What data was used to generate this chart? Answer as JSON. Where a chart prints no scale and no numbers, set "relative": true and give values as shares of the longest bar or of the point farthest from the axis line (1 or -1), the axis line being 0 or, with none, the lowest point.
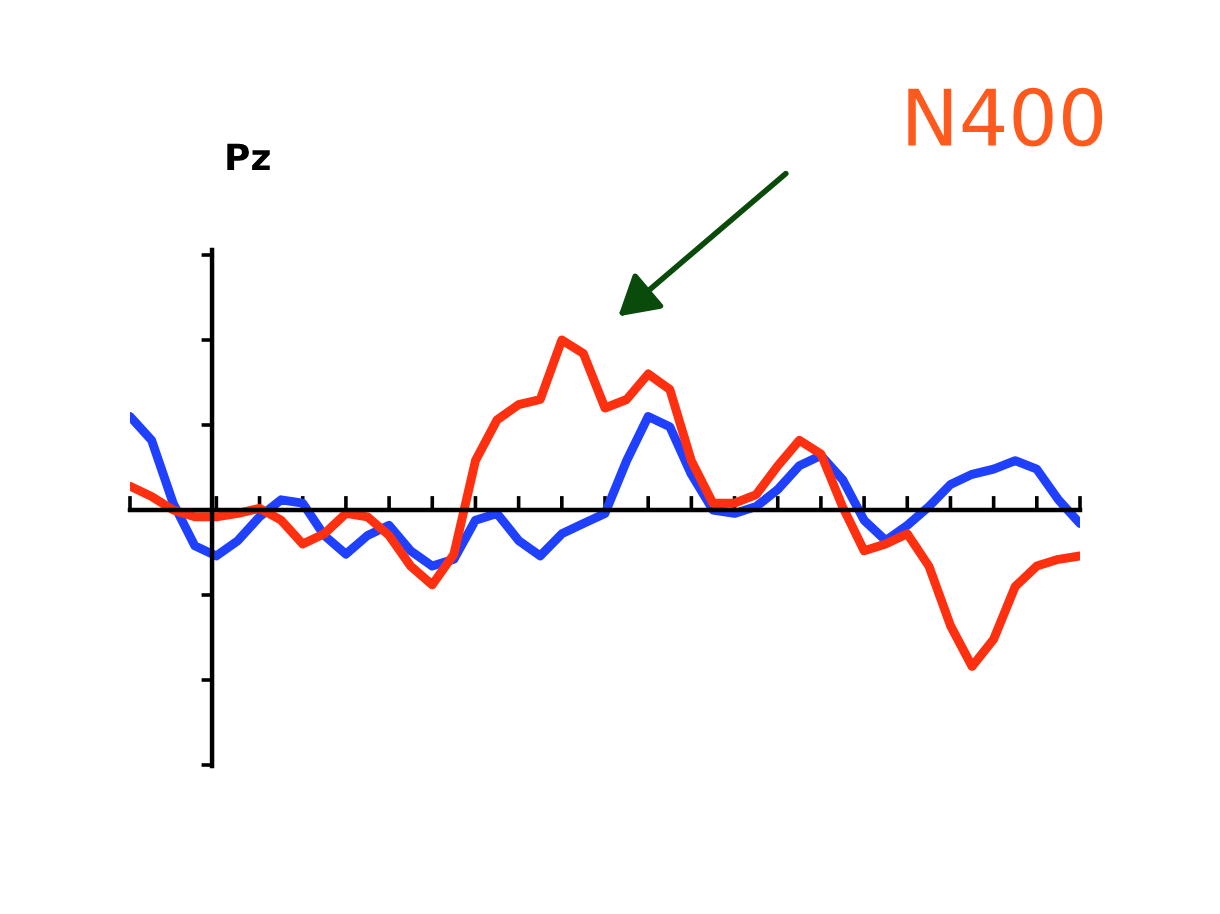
{
  "chart_data": {
    "type": "line",
    "title": "Pz",
    "annotations": [
      "N400"
    ],
    "relative": true,
    "grid": false,
    "legend": false,
    "marker": "none",
    "line_style": "solid",
    "categories": [
      null,
      null,
      null,
      null,
      null,
      null,
      null,
      null,
      null,
      null,
      null,
      null,
      null,
      null,
      null,
      null,
      null,
      null,
      null,
      null,
      null,
      null,
      null,
      null,
      null,
      null,
      null,
      null,
      null,
      null,
      null,
      null,
      null,
      null,
      null,
      null,
      null,
      null,
      null,
      null,
      null,
      null,
      null,
      null,
      null
    ],
    "series": [
      {
        "color": "#2040ff",
        "values": [
          0.55,
          0.41,
          0.04,
          -0.21,
          -0.27,
          -0.18,
          -0.04,
          0.06,
          0.04,
          -0.15,
          -0.26,
          -0.15,
          -0.09,
          -0.24,
          -0.33,
          -0.29,
          -0.06,
          -0.02,
          -0.18,
          -0.27,
          -0.14,
          -0.08,
          -0.02,
          0.29,
          0.55,
          0.49,
          0.21,
          0,
          -0.02,
          0.02,
          0.12,
          0.26,
          0.32,
          0.18,
          -0.06,
          -0.18,
          -0.09,
          0.02,
          0.15,
          0.21,
          0.24,
          0.29,
          0.24,
          0.06,
          -0.08
        ]
      },
      {
        "color": "#ff3010",
        "values": [
          0.14,
          0.08,
          0,
          -0.04,
          -0.04,
          -0.02,
          0.01,
          -0.06,
          -0.2,
          -0.14,
          -0.02,
          -0.04,
          -0.15,
          -0.33,
          -0.44,
          -0.26,
          0.29,
          0.53,
          0.62,
          0.65,
          1.0,
          0.92,
          0.6,
          0.65,
          0.8,
          0.71,
          0.29,
          0.04,
          0.04,
          0.09,
          0.26,
          0.41,
          0.33,
          0.02,
          -0.24,
          -0.2,
          -0.14,
          -0.33,
          -0.68,
          -0.92,
          -0.76,
          -0.45,
          -0.33,
          -0.29,
          -0.27
        ]
      }
    ]
  }
}
